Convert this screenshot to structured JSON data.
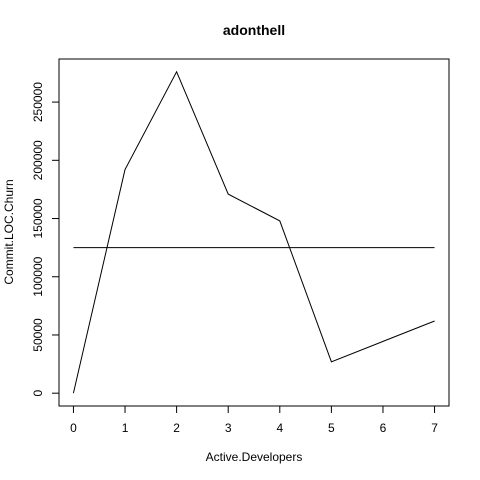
{
  "chart_data": {
    "type": "line",
    "title": "adonthell",
    "xlabel": "Active.Developers",
    "ylabel": "Commit.LOC.Churn",
    "x": [
      0,
      1,
      2,
      3,
      4,
      5,
      6,
      7
    ],
    "series": [
      {
        "values": [
          0,
          192000,
          276000,
          171000,
          148000,
          27000,
          44500,
          62000
        ]
      }
    ],
    "reference_line": {
      "y": 125000
    },
    "xlim": [
      -0.28,
      7.28
    ],
    "ylim": [
      -11000,
      287000
    ],
    "x_ticks": [
      0,
      1,
      2,
      3,
      4,
      5,
      6,
      7
    ],
    "y_ticks": [
      0,
      50000,
      100000,
      150000,
      200000,
      250000
    ],
    "grid": false,
    "legend": "none",
    "colors": {
      "line": "#000000",
      "frame": "#000000",
      "background": "#ffffff"
    }
  }
}
